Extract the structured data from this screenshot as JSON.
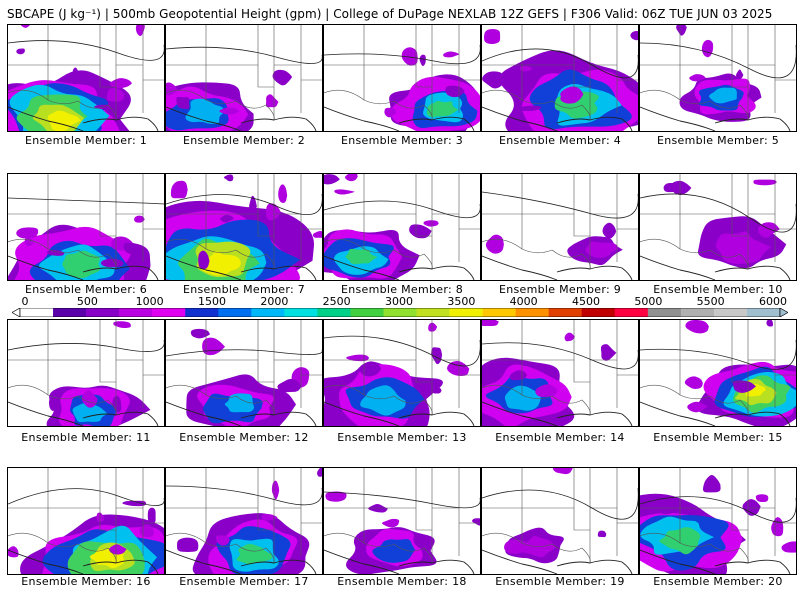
{
  "header": {
    "title": "SBCAPE (J kg⁻¹) | 500mb Geopotential Height (gpm) | College of DuPage NEXLAB 12Z GEFS | F306 Valid: 06Z TUE JUN 03 2025"
  },
  "colorbar": {
    "tick_labels": [
      "0",
      "500",
      "1000",
      "1500",
      "2000",
      "2500",
      "3000",
      "3500",
      "4000",
      "4500",
      "5000",
      "5500",
      "6000"
    ],
    "colors": [
      "#ffffff",
      "#5a00a8",
      "#8800c8",
      "#b800e0",
      "#e000f0",
      "#1030d0",
      "#0070f0",
      "#00b8f8",
      "#00e0e0",
      "#00d088",
      "#40d040",
      "#90e030",
      "#c0e020",
      "#f0f000",
      "#ffc800",
      "#ff9000",
      "#e04000",
      "#c00000",
      "#ff0040",
      "#909090",
      "#b0b0b0",
      "#c8c8c8",
      "#a0c0d0"
    ]
  },
  "panels": [
    {
      "label": "Ensemble Member: 1",
      "fill": 0.75,
      "peak": "yellow"
    },
    {
      "label": "Ensemble Member: 2",
      "fill": 0.55,
      "peak": "cyan"
    },
    {
      "label": "Ensemble Member: 3",
      "fill": 0.45,
      "peak": "green"
    },
    {
      "label": "Ensemble Member: 4",
      "fill": 0.8,
      "peak": "green"
    },
    {
      "label": "Ensemble Member: 5",
      "fill": 0.3,
      "peak": "cyan"
    },
    {
      "label": "Ensemble Member: 6",
      "fill": 0.75,
      "peak": "green"
    },
    {
      "label": "Ensemble Member: 7",
      "fill": 0.95,
      "peak": "yellow"
    },
    {
      "label": "Ensemble Member: 8",
      "fill": 0.45,
      "peak": "green"
    },
    {
      "label": "Ensemble Member: 9",
      "fill": 0.08,
      "peak": "purple"
    },
    {
      "label": "Ensemble Member: 10",
      "fill": 0.3,
      "peak": "purple"
    },
    {
      "label": "Ensemble Member: 11",
      "fill": 0.4,
      "peak": "cyan"
    },
    {
      "label": "Ensemble Member: 12",
      "fill": 0.4,
      "peak": "cyan"
    },
    {
      "label": "Ensemble Member: 13",
      "fill": 0.6,
      "peak": "cyan"
    },
    {
      "label": "Ensemble Member: 14",
      "fill": 0.55,
      "peak": "cyan"
    },
    {
      "label": "Ensemble Member: 15",
      "fill": 0.55,
      "peak": "yellow"
    },
    {
      "label": "Ensemble Member: 16",
      "fill": 0.8,
      "peak": "yellow"
    },
    {
      "label": "Ensemble Member: 17",
      "fill": 0.55,
      "peak": "green"
    },
    {
      "label": "Ensemble Member: 18",
      "fill": 0.35,
      "peak": "blue"
    },
    {
      "label": "Ensemble Member: 19",
      "fill": 0.12,
      "peak": "purple"
    },
    {
      "label": "Ensemble Member: 20",
      "fill": 0.7,
      "peak": "green"
    }
  ]
}
